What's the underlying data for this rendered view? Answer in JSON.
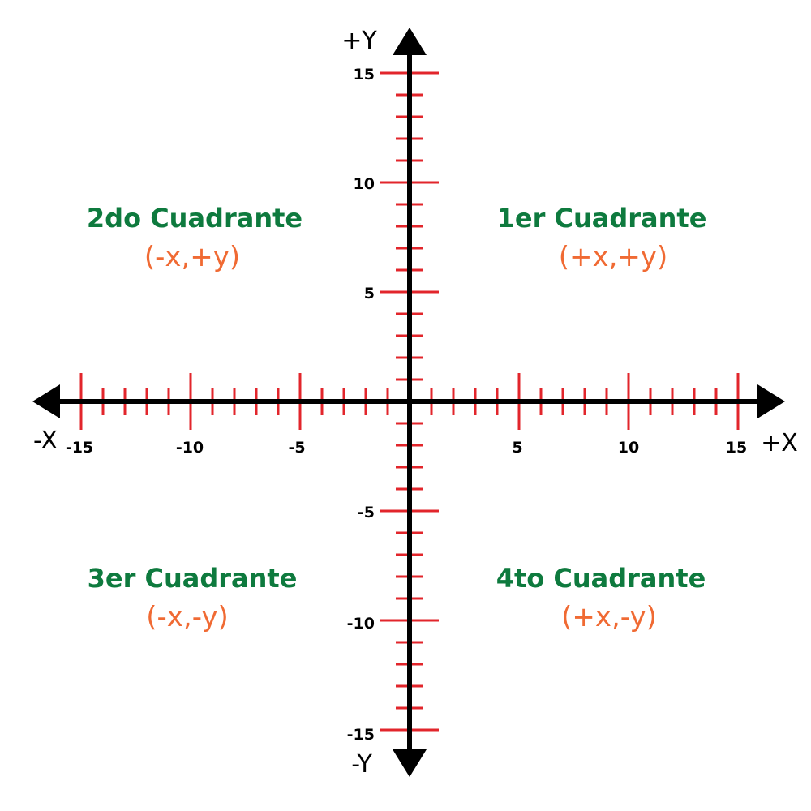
{
  "colors": {
    "axis": "#000000",
    "tick": "#e2252b",
    "quadrant_title": "#0e7a3e",
    "quadrant_sign": "#f06a33"
  },
  "axes": {
    "x_positive": "+X",
    "x_negative": "-X",
    "y_positive": "+Y",
    "y_negative": "-Y",
    "range": [
      -15,
      15
    ],
    "tick_step": 1,
    "major_tick_step": 5
  },
  "x_ticks": [
    "-15",
    "-10",
    "-5",
    "5",
    "10",
    "15"
  ],
  "y_ticks": [
    "15",
    "10",
    "5",
    "-5",
    "-10",
    "-15"
  ],
  "quadrants": [
    {
      "title": "1er Cuadrante",
      "signs": "(+x,+y)"
    },
    {
      "title": "2do Cuadrante",
      "signs": "(-x,+y)"
    },
    {
      "title": "3er Cuadrante",
      "signs": "(-x,-y)"
    },
    {
      "title": "4to Cuadrante",
      "signs": "(+x,-y)"
    }
  ]
}
